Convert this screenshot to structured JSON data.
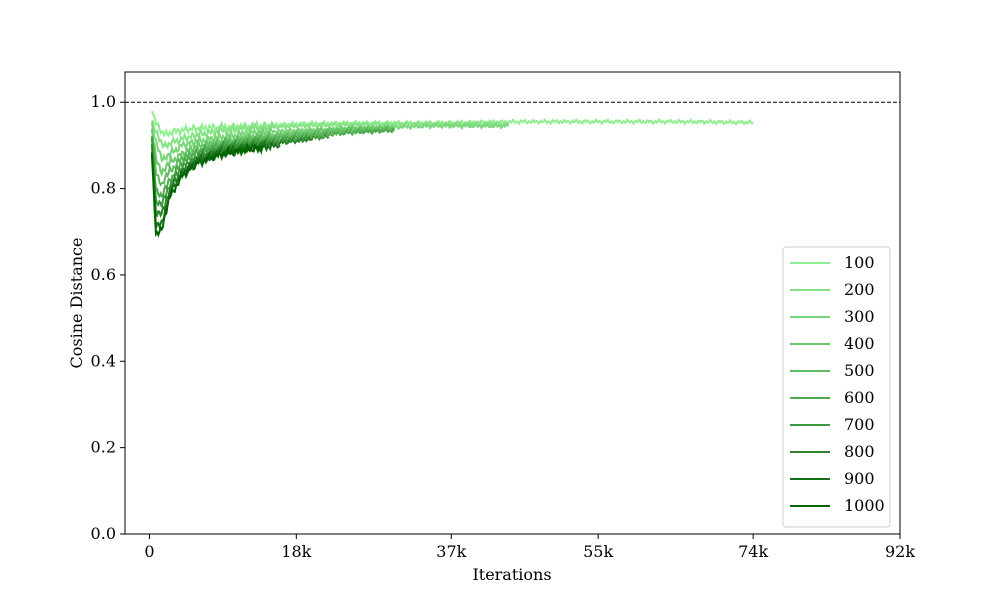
{
  "chart_data": {
    "type": "line",
    "xlabel": "Iterations",
    "ylabel": "Cosine Distance",
    "xlim": [
      -3000,
      92000
    ],
    "ylim": [
      0,
      1.07
    ],
    "xticks": [
      0,
      18000,
      37000,
      55000,
      74000,
      92000
    ],
    "xtick_labels": [
      "0",
      "18k",
      "37k",
      "55k",
      "74k",
      "92k"
    ],
    "yticks": [
      0,
      0.2,
      0.4,
      0.6,
      0.8,
      1.0
    ],
    "ytick_labels": [
      "0.0",
      "0.2",
      "0.4",
      "0.6",
      "0.8",
      "1.0"
    ],
    "reference_line": {
      "y": 1.0,
      "style": "dashed",
      "color": "#000000"
    },
    "legend": {
      "position": "lower-right"
    },
    "grid": false,
    "series": [
      {
        "name": "100",
        "color": "#90ee90",
        "points": [
          [
            300,
            0.98
          ],
          [
            800,
            0.955
          ],
          [
            1500,
            0.925
          ],
          [
            2500,
            0.93
          ],
          [
            4000,
            0.935
          ],
          [
            6000,
            0.94
          ],
          [
            9000,
            0.942
          ],
          [
            13000,
            0.945
          ],
          [
            18000,
            0.95
          ],
          [
            25000,
            0.952
          ],
          [
            35000,
            0.952
          ],
          [
            45000,
            0.955
          ],
          [
            55000,
            0.955
          ],
          [
            65000,
            0.955
          ],
          [
            74000,
            0.953
          ]
        ]
      },
      {
        "name": "200",
        "color": "#85e285",
        "points": [
          [
            300,
            0.96
          ],
          [
            800,
            0.93
          ],
          [
            1500,
            0.9
          ],
          [
            2500,
            0.905
          ],
          [
            4000,
            0.915
          ],
          [
            6000,
            0.925
          ],
          [
            9000,
            0.935
          ],
          [
            13000,
            0.94
          ],
          [
            18000,
            0.945
          ],
          [
            25000,
            0.948
          ],
          [
            35000,
            0.95
          ],
          [
            44000,
            0.95
          ]
        ]
      },
      {
        "name": "300",
        "color": "#79d679",
        "points": [
          [
            300,
            0.95
          ],
          [
            800,
            0.905
          ],
          [
            1500,
            0.87
          ],
          [
            2500,
            0.88
          ],
          [
            4000,
            0.9
          ],
          [
            6000,
            0.91
          ],
          [
            9000,
            0.92
          ],
          [
            13000,
            0.93
          ],
          [
            18000,
            0.935
          ],
          [
            25000,
            0.94
          ],
          [
            35000,
            0.945
          ],
          [
            44000,
            0.945
          ]
        ]
      },
      {
        "name": "400",
        "color": "#6cc96c",
        "points": [
          [
            300,
            0.94
          ],
          [
            800,
            0.87
          ],
          [
            1500,
            0.84
          ],
          [
            2500,
            0.86
          ],
          [
            4000,
            0.88
          ],
          [
            6000,
            0.9
          ],
          [
            9000,
            0.91
          ],
          [
            13000,
            0.92
          ],
          [
            18000,
            0.93
          ],
          [
            25000,
            0.94
          ],
          [
            30000,
            0.942
          ]
        ]
      },
      {
        "name": "500",
        "color": "#5ebb5e",
        "points": [
          [
            300,
            0.93
          ],
          [
            800,
            0.84
          ],
          [
            1500,
            0.81
          ],
          [
            2500,
            0.84
          ],
          [
            4000,
            0.87
          ],
          [
            6000,
            0.89
          ],
          [
            9000,
            0.905
          ],
          [
            13000,
            0.915
          ],
          [
            18000,
            0.925
          ],
          [
            25000,
            0.935
          ],
          [
            30000,
            0.937
          ]
        ]
      },
      {
        "name": "600",
        "color": "#4eab4e",
        "points": [
          [
            300,
            0.92
          ],
          [
            800,
            0.8
          ],
          [
            1500,
            0.78
          ],
          [
            2500,
            0.82
          ],
          [
            4000,
            0.86
          ],
          [
            6000,
            0.885
          ],
          [
            9000,
            0.9
          ],
          [
            13000,
            0.91
          ],
          [
            18000,
            0.92
          ],
          [
            25000,
            0.93
          ],
          [
            30000,
            0.935
          ]
        ]
      },
      {
        "name": "700",
        "color": "#3d993d",
        "points": [
          [
            300,
            0.91
          ],
          [
            800,
            0.77
          ],
          [
            1500,
            0.76
          ],
          [
            2500,
            0.81
          ],
          [
            4000,
            0.85
          ],
          [
            6000,
            0.875
          ],
          [
            9000,
            0.895
          ],
          [
            13000,
            0.905
          ],
          [
            18000,
            0.915
          ],
          [
            22000,
            0.92
          ]
        ]
      },
      {
        "name": "800",
        "color": "#2b852b",
        "points": [
          [
            300,
            0.9
          ],
          [
            800,
            0.74
          ],
          [
            1500,
            0.74
          ],
          [
            2500,
            0.8
          ],
          [
            4000,
            0.84
          ],
          [
            6000,
            0.87
          ],
          [
            9000,
            0.89
          ],
          [
            13000,
            0.9
          ],
          [
            18000,
            0.91
          ],
          [
            20000,
            0.915
          ]
        ]
      },
      {
        "name": "900",
        "color": "#187018",
        "points": [
          [
            300,
            0.89
          ],
          [
            800,
            0.71
          ],
          [
            1500,
            0.72
          ],
          [
            2500,
            0.79
          ],
          [
            4000,
            0.835
          ],
          [
            6000,
            0.865
          ],
          [
            9000,
            0.885
          ],
          [
            13000,
            0.895
          ],
          [
            16000,
            0.9
          ]
        ]
      },
      {
        "name": "1000",
        "color": "#006400",
        "points": [
          [
            300,
            0.88
          ],
          [
            800,
            0.69
          ],
          [
            1500,
            0.71
          ],
          [
            2500,
            0.78
          ],
          [
            4000,
            0.83
          ],
          [
            6000,
            0.86
          ],
          [
            9000,
            0.88
          ],
          [
            12000,
            0.89
          ],
          [
            14000,
            0.895
          ]
        ]
      }
    ]
  }
}
